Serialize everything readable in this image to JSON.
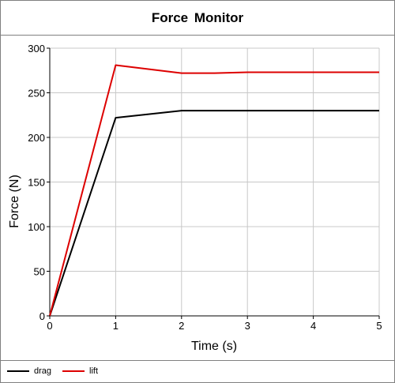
{
  "window": {
    "title": "Force  Monitor"
  },
  "chart_data": {
    "type": "line",
    "title": "Force  Monitor",
    "xlabel": "Time (s)",
    "ylabel": "Force (N)",
    "xlim": [
      0,
      5
    ],
    "ylim": [
      0,
      300
    ],
    "x_ticks": [
      0,
      1,
      2,
      3,
      4,
      5
    ],
    "y_ticks": [
      0,
      50,
      100,
      150,
      200,
      250,
      300
    ],
    "grid": true,
    "legend_position": "bottom-left",
    "series": [
      {
        "name": "drag",
        "color": "#000000",
        "x": [
          0,
          1,
          2,
          2.5,
          3,
          4,
          5
        ],
        "y": [
          0,
          222,
          230,
          230,
          230,
          230,
          230
        ]
      },
      {
        "name": "lift",
        "color": "#dd0000",
        "x": [
          0,
          1,
          2,
          2.5,
          3,
          4,
          5
        ],
        "y": [
          0,
          281,
          272,
          272,
          273,
          273,
          273
        ]
      }
    ]
  }
}
